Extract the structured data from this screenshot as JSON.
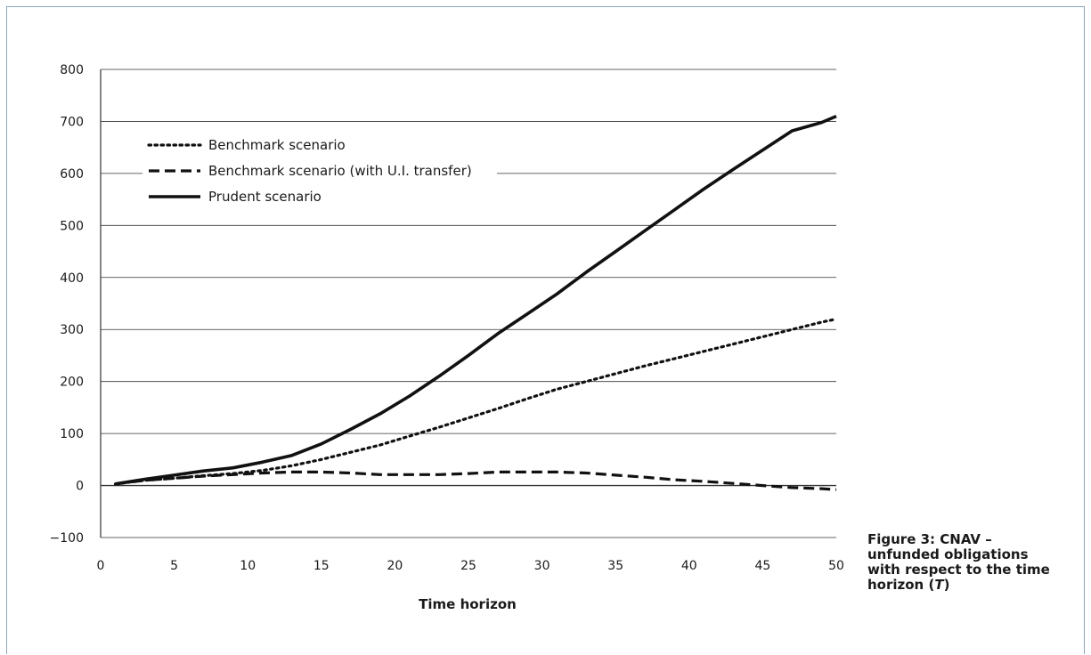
{
  "chart_data": {
    "type": "line",
    "xlabel": "Time horizon",
    "ylabel": "",
    "xlim": [
      0,
      50
    ],
    "ylim": [
      -100,
      800
    ],
    "xticks": [
      0,
      5,
      10,
      15,
      20,
      25,
      30,
      35,
      40,
      45,
      50
    ],
    "yticks": [
      -100,
      0,
      100,
      200,
      300,
      400,
      500,
      600,
      700,
      800
    ],
    "ytick_labels": [
      "−100",
      "0",
      "100",
      "200",
      "300",
      "400",
      "500",
      "600",
      "700",
      "800"
    ],
    "grid": "horizontal",
    "legend_position": "top-left",
    "caption": {
      "text": "Figure 3: CNAV – unfunded obligations with respect to the time horizon (",
      "variable": "T",
      "suffix": ")"
    },
    "series": [
      {
        "name": "Benchmark scenario",
        "style": "dotted",
        "x": [
          1,
          3,
          5,
          7,
          9,
          11,
          13,
          15,
          17,
          19,
          21,
          23,
          25,
          27,
          29,
          31,
          33,
          35,
          37,
          39,
          41,
          43,
          45,
          47,
          49,
          50
        ],
        "y": [
          3,
          10,
          14,
          19,
          23,
          29,
          38,
          50,
          64,
          78,
          95,
          112,
          130,
          148,
          167,
          185,
          200,
          215,
          230,
          244,
          258,
          272,
          286,
          300,
          314,
          320
        ]
      },
      {
        "name": "Benchmark scenario (with U.I. transfer)",
        "style": "dashed",
        "x": [
          1,
          3,
          5,
          7,
          9,
          11,
          13,
          15,
          17,
          19,
          21,
          23,
          25,
          27,
          29,
          31,
          33,
          35,
          37,
          39,
          41,
          43,
          45,
          47,
          49,
          50
        ],
        "y": [
          3,
          10,
          14,
          18,
          21,
          24,
          26,
          26,
          24,
          21,
          21,
          21,
          23,
          26,
          26,
          26,
          24,
          20,
          16,
          11,
          8,
          4,
          0,
          -4,
          -6,
          -8
        ]
      },
      {
        "name": "Prudent scenario",
        "style": "solid",
        "x": [
          1,
          3,
          5,
          7,
          9,
          11,
          13,
          15,
          17,
          19,
          21,
          23,
          25,
          27,
          29,
          31,
          33,
          35,
          37,
          39,
          41,
          43,
          45,
          47,
          49,
          50
        ],
        "y": [
          3,
          12,
          20,
          28,
          34,
          45,
          58,
          80,
          108,
          138,
          172,
          210,
          250,
          292,
          330,
          368,
          410,
          450,
          490,
          530,
          570,
          608,
          645,
          682,
          698,
          710
        ]
      }
    ]
  },
  "colors": {
    "line": "#111111",
    "grid": "#333333",
    "frame": "#8aa4b8",
    "text": "#1a1a1a"
  }
}
